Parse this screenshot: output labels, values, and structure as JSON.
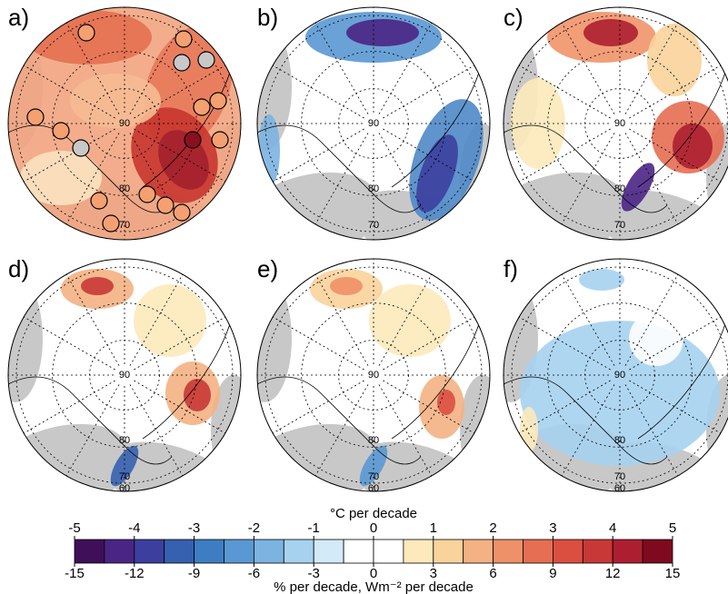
{
  "panels": [
    {
      "label": "a)"
    },
    {
      "label": "b)"
    },
    {
      "label": "c)"
    },
    {
      "label": "d)"
    },
    {
      "label": "e)"
    },
    {
      "label": "f)"
    }
  ],
  "map_labels": {
    "pole": "90",
    "lat80": "80",
    "lat70": "70",
    "lat60": "60"
  },
  "colorbar": {
    "title_top": "°C per decade",
    "title_bottom": "% per decade, Wm⁻² per decade",
    "top_lim": [
      -5,
      5
    ],
    "top_ticks": [
      -5,
      -4,
      -3,
      -2,
      -1,
      0,
      1,
      2,
      3,
      4,
      5
    ],
    "bottom_lim": [
      -15,
      15
    ],
    "bottom_ticks": [
      -15,
      -12,
      -9,
      -6,
      -3,
      0,
      3,
      6,
      9,
      12,
      15
    ],
    "colors": [
      "#3f0f5a",
      "#4a2585",
      "#3c3f9e",
      "#3660b0",
      "#3e7dc2",
      "#5a98d3",
      "#7bb3e1",
      "#a6d2f0",
      "#d3eaf8",
      "#ffffff",
      "#ffffff",
      "#fde9bb",
      "#f9d39b",
      "#f4b183",
      "#ee9068",
      "#e66e52",
      "#db4f41",
      "#c83836",
      "#ad1f30",
      "#7f0a20"
    ]
  }
}
